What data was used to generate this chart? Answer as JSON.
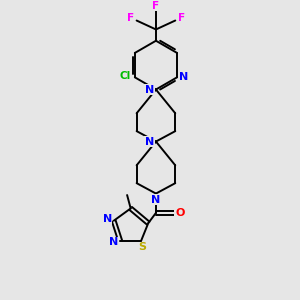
{
  "background_color": "#e6e6e6",
  "bond_color": "#000000",
  "atom_colors": {
    "N": "#0000ff",
    "Cl": "#00bb00",
    "F": "#ff00ff",
    "O": "#ff0000",
    "S": "#bbaa00",
    "C": "#000000"
  },
  "figsize": [
    3.0,
    3.0
  ],
  "dpi": 100
}
